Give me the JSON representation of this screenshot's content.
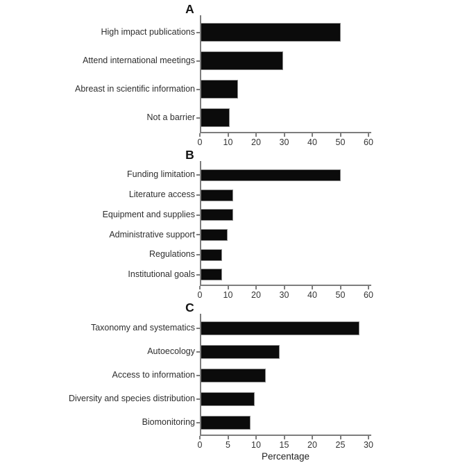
{
  "figure": {
    "background": "#ffffff",
    "xaxis_title": "Percentage"
  },
  "colors": {
    "bar_fill": "#0b0b0b",
    "bar_border": "#909090",
    "axis_line": "#7d7d7d",
    "label_text": "#2e2e2e",
    "tick_text": "#333333",
    "panel_letter_text": "#141414"
  },
  "chart_data": [
    {
      "type": "bar",
      "orientation": "horizontal",
      "panel": "A",
      "categories": [
        "High impact publications",
        "Attend international meetings",
        "Abreast in scientific information",
        "Not a barrier"
      ],
      "values": [
        49.5,
        29,
        13,
        10
      ],
      "xlim": [
        0,
        60
      ],
      "xticks": [
        0,
        10,
        20,
        30,
        40,
        50,
        60
      ],
      "xlabel": "",
      "grid": false,
      "legend": "none"
    },
    {
      "type": "bar",
      "orientation": "horizontal",
      "panel": "B",
      "categories": [
        "Funding limitation",
        "Literature access",
        "Equipment and supplies",
        "Administrative support",
        "Regulations",
        "Institutional goals"
      ],
      "values": [
        49.5,
        11.3,
        11.3,
        9.3,
        7.4,
        7.3
      ],
      "xlim": [
        0,
        60
      ],
      "xticks": [
        0,
        10,
        20,
        30,
        40,
        50,
        60
      ],
      "xlabel": "",
      "grid": false,
      "legend": "none"
    },
    {
      "type": "bar",
      "orientation": "horizontal",
      "panel": "C",
      "categories": [
        "Taxonomy and systematics",
        "Autoecology",
        "Access to information",
        "Diversity and species distribution",
        "Biomonitoring"
      ],
      "values": [
        28.2,
        14,
        11.5,
        9.5,
        8.8
      ],
      "xlim": [
        0,
        30
      ],
      "xticks": [
        0,
        5,
        10,
        15,
        20,
        25,
        30
      ],
      "xlabel": "Percentage",
      "grid": false,
      "legend": "none"
    }
  ]
}
